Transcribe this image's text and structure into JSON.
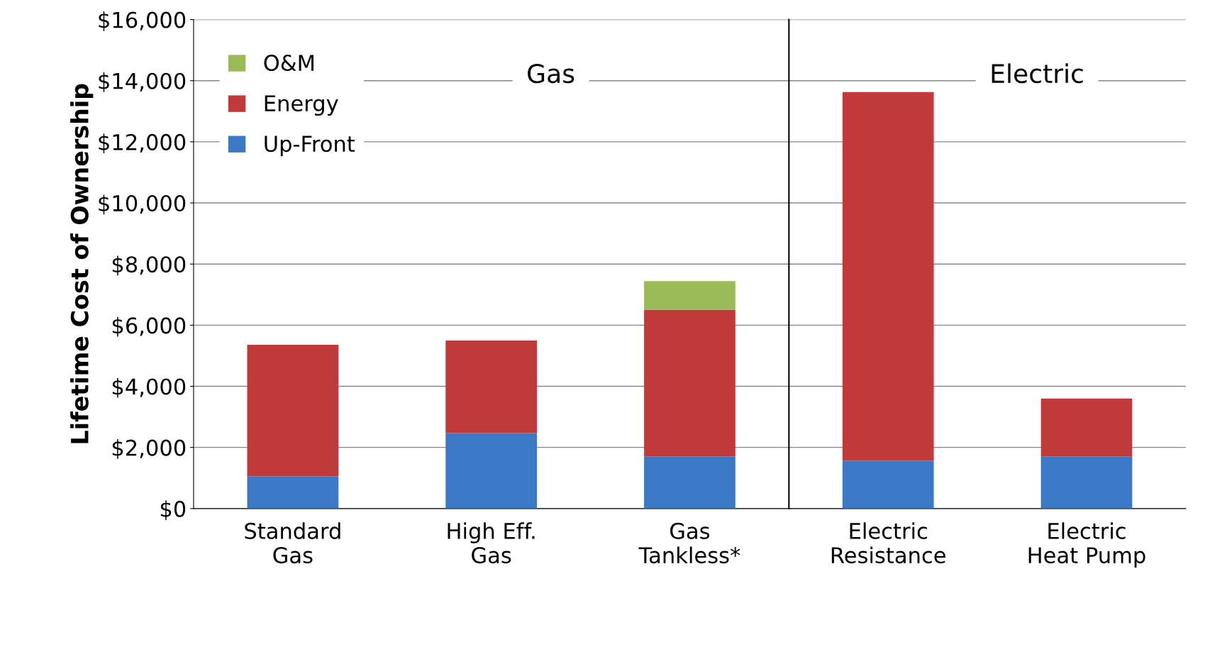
{
  "chart_data": [
    {
      "type": "bar",
      "stacked": true,
      "title": "Gas",
      "ylabel": "Lifetime Cost of Ownership",
      "categories": [
        "Standard\nGas",
        "High Eff.\nGas",
        "Gas\nTankless*"
      ],
      "series": [
        {
          "name": "Up-Front",
          "color": "#3b78c6",
          "values": [
            1060,
            2470,
            1710
          ]
        },
        {
          "name": "Energy",
          "color": "#c0393b",
          "values": [
            4300,
            3030,
            4800
          ]
        },
        {
          "name": "O&M",
          "color": "#9bbb59",
          "values": [
            0,
            0,
            930
          ]
        }
      ],
      "ylim": [
        0,
        16000
      ],
      "yticks": [
        {
          "value": 0,
          "label": "$0"
        },
        {
          "value": 2000,
          "label": "$2,000"
        },
        {
          "value": 4000,
          "label": "$4,000"
        },
        {
          "value": 6000,
          "label": "$6,000"
        },
        {
          "value": 8000,
          "label": "$8,000"
        },
        {
          "value": 10000,
          "label": "$10,000"
        },
        {
          "value": 12000,
          "label": "$12,000"
        },
        {
          "value": 14000,
          "label": "$14,000"
        },
        {
          "value": 16000,
          "label": "$16,000"
        }
      ],
      "grid": "y",
      "legend": "top left"
    },
    {
      "type": "bar",
      "stacked": true,
      "title": "Electric",
      "categories": [
        "Electric\nResistance",
        "Electric\nHeat Pump"
      ],
      "series": [
        {
          "color": "#3b78c6",
          "values": [
            1570,
            1710
          ]
        },
        {
          "color": "#c0393b",
          "values": [
            12060,
            1890
          ]
        },
        {
          "color": "#9bbb59",
          "values": [
            0,
            0
          ]
        }
      ],
      "ylim": [
        0,
        16000
      ],
      "yticks": [
        0,
        2000,
        4000,
        6000,
        8000,
        10000,
        12000,
        14000,
        16000
      ],
      "grid": "y",
      "tick_labels": "x"
    }
  ]
}
